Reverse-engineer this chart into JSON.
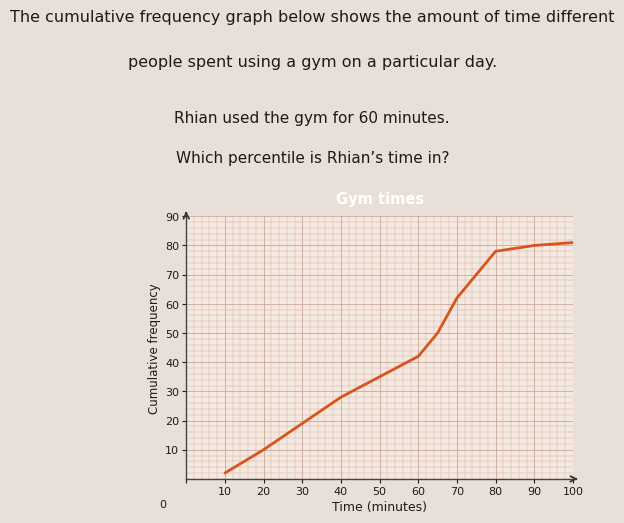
{
  "title": "Gym times",
  "xlabel": "Time (minutes)",
  "ylabel": "Cumulative frequency",
  "header_text_line1": "The cumulative frequency graph below shows the amount of time different",
  "header_text_line2": "people spent using a gym on a particular day.",
  "sub_text_line1": "Rhian used the gym for 60 minutes.",
  "sub_text_line2": "Which percentile is Rhian’s time in?",
  "curve_x": [
    10,
    20,
    30,
    40,
    50,
    60,
    65,
    70,
    75,
    80,
    90,
    100
  ],
  "curve_y": [
    2,
    10,
    19,
    28,
    35,
    42,
    50,
    62,
    70,
    78,
    80,
    81
  ],
  "xlim": [
    0,
    100
  ],
  "ylim": [
    0,
    90
  ],
  "xticks": [
    0,
    10,
    20,
    30,
    40,
    50,
    60,
    70,
    80,
    90,
    100
  ],
  "yticks": [
    10,
    20,
    30,
    40,
    50,
    60,
    70,
    80,
    90
  ],
  "curve_color": "#d9531e",
  "title_bg_color": "#2d5fa0",
  "title_text_color": "#ffffff",
  "plot_bg_color": "#f5e8e0",
  "grid_color": "#c8a898",
  "page_bg_color": "#e8e0d8",
  "text_color": "#1a1a1a"
}
